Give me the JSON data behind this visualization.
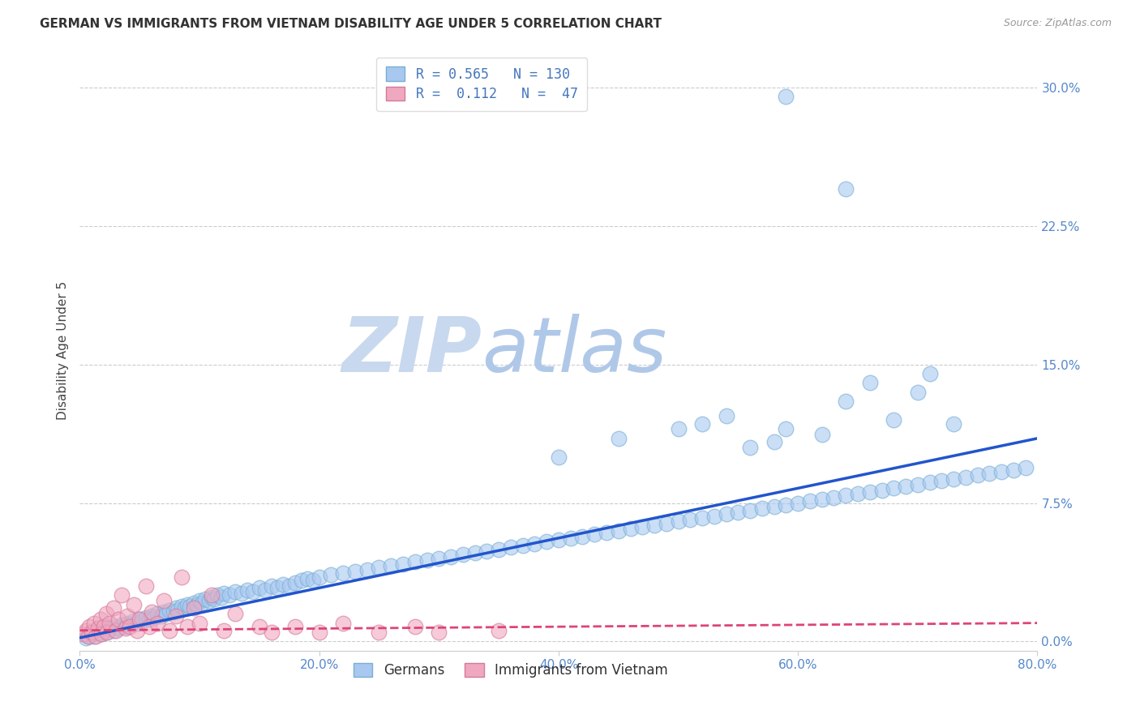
{
  "title": "GERMAN VS IMMIGRANTS FROM VIETNAM DISABILITY AGE UNDER 5 CORRELATION CHART",
  "source": "Source: ZipAtlas.com",
  "ylabel": "Disability Age Under 5",
  "background_color": "#ffffff",
  "watermark_zip": "ZIP",
  "watermark_atlas": "atlas",
  "xlim": [
    0.0,
    0.8
  ],
  "ylim": [
    -0.005,
    0.32
  ],
  "xticks": [
    0.0,
    0.2,
    0.4,
    0.6,
    0.8
  ],
  "yticks": [
    0.0,
    0.075,
    0.15,
    0.225,
    0.3
  ],
  "grid_color": "#cccccc",
  "german_color": "#a8c8f0",
  "german_edge_color": "#7aafd4",
  "vietnam_color": "#f0a8c0",
  "vietnam_edge_color": "#d47a9a",
  "trendline_german_color": "#2255cc",
  "trendline_vietnam_color": "#dd4477",
  "label_color": "#5588cc",
  "german_label": "Germans",
  "vietnam_label": "Immigrants from Vietnam",
  "legend_text_color": "#4477bb",
  "german_scatter": [
    [
      0.005,
      0.002
    ],
    [
      0.008,
      0.003
    ],
    [
      0.01,
      0.004
    ],
    [
      0.012,
      0.003
    ],
    [
      0.015,
      0.005
    ],
    [
      0.018,
      0.004
    ],
    [
      0.02,
      0.006
    ],
    [
      0.022,
      0.005
    ],
    [
      0.025,
      0.007
    ],
    [
      0.028,
      0.006
    ],
    [
      0.03,
      0.008
    ],
    [
      0.032,
      0.007
    ],
    [
      0.035,
      0.009
    ],
    [
      0.038,
      0.008
    ],
    [
      0.04,
      0.01
    ],
    [
      0.042,
      0.009
    ],
    [
      0.045,
      0.011
    ],
    [
      0.048,
      0.01
    ],
    [
      0.05,
      0.012
    ],
    [
      0.052,
      0.011
    ],
    [
      0.055,
      0.013
    ],
    [
      0.058,
      0.012
    ],
    [
      0.06,
      0.014
    ],
    [
      0.062,
      0.013
    ],
    [
      0.065,
      0.015
    ],
    [
      0.068,
      0.014
    ],
    [
      0.07,
      0.016
    ],
    [
      0.072,
      0.015
    ],
    [
      0.075,
      0.017
    ],
    [
      0.078,
      0.016
    ],
    [
      0.08,
      0.018
    ],
    [
      0.082,
      0.017
    ],
    [
      0.085,
      0.019
    ],
    [
      0.088,
      0.018
    ],
    [
      0.09,
      0.02
    ],
    [
      0.092,
      0.019
    ],
    [
      0.095,
      0.021
    ],
    [
      0.098,
      0.02
    ],
    [
      0.1,
      0.022
    ],
    [
      0.102,
      0.021
    ],
    [
      0.105,
      0.023
    ],
    [
      0.108,
      0.022
    ],
    [
      0.11,
      0.024
    ],
    [
      0.112,
      0.023
    ],
    [
      0.115,
      0.025
    ],
    [
      0.118,
      0.024
    ],
    [
      0.12,
      0.026
    ],
    [
      0.125,
      0.025
    ],
    [
      0.13,
      0.027
    ],
    [
      0.135,
      0.026
    ],
    [
      0.14,
      0.028
    ],
    [
      0.145,
      0.027
    ],
    [
      0.15,
      0.029
    ],
    [
      0.155,
      0.028
    ],
    [
      0.16,
      0.03
    ],
    [
      0.165,
      0.029
    ],
    [
      0.17,
      0.031
    ],
    [
      0.175,
      0.03
    ],
    [
      0.18,
      0.032
    ],
    [
      0.185,
      0.033
    ],
    [
      0.19,
      0.034
    ],
    [
      0.195,
      0.033
    ],
    [
      0.2,
      0.035
    ],
    [
      0.21,
      0.036
    ],
    [
      0.22,
      0.037
    ],
    [
      0.23,
      0.038
    ],
    [
      0.24,
      0.039
    ],
    [
      0.25,
      0.04
    ],
    [
      0.26,
      0.041
    ],
    [
      0.27,
      0.042
    ],
    [
      0.28,
      0.043
    ],
    [
      0.29,
      0.044
    ],
    [
      0.3,
      0.045
    ],
    [
      0.31,
      0.046
    ],
    [
      0.32,
      0.047
    ],
    [
      0.33,
      0.048
    ],
    [
      0.34,
      0.049
    ],
    [
      0.35,
      0.05
    ],
    [
      0.36,
      0.051
    ],
    [
      0.37,
      0.052
    ],
    [
      0.38,
      0.053
    ],
    [
      0.39,
      0.054
    ],
    [
      0.4,
      0.055
    ],
    [
      0.41,
      0.056
    ],
    [
      0.42,
      0.057
    ],
    [
      0.43,
      0.058
    ],
    [
      0.44,
      0.059
    ],
    [
      0.45,
      0.06
    ],
    [
      0.46,
      0.061
    ],
    [
      0.47,
      0.062
    ],
    [
      0.48,
      0.063
    ],
    [
      0.49,
      0.064
    ],
    [
      0.5,
      0.065
    ],
    [
      0.51,
      0.066
    ],
    [
      0.52,
      0.067
    ],
    [
      0.53,
      0.068
    ],
    [
      0.54,
      0.069
    ],
    [
      0.55,
      0.07
    ],
    [
      0.56,
      0.071
    ],
    [
      0.57,
      0.072
    ],
    [
      0.58,
      0.073
    ],
    [
      0.59,
      0.074
    ],
    [
      0.6,
      0.075
    ],
    [
      0.61,
      0.076
    ],
    [
      0.62,
      0.077
    ],
    [
      0.63,
      0.078
    ],
    [
      0.64,
      0.079
    ],
    [
      0.65,
      0.08
    ],
    [
      0.66,
      0.081
    ],
    [
      0.67,
      0.082
    ],
    [
      0.68,
      0.083
    ],
    [
      0.69,
      0.084
    ],
    [
      0.7,
      0.085
    ],
    [
      0.71,
      0.086
    ],
    [
      0.72,
      0.087
    ],
    [
      0.73,
      0.088
    ],
    [
      0.74,
      0.089
    ],
    [
      0.75,
      0.09
    ],
    [
      0.76,
      0.091
    ],
    [
      0.77,
      0.092
    ],
    [
      0.78,
      0.093
    ],
    [
      0.79,
      0.094
    ],
    [
      0.4,
      0.1
    ],
    [
      0.45,
      0.11
    ],
    [
      0.5,
      0.115
    ],
    [
      0.52,
      0.118
    ],
    [
      0.54,
      0.122
    ],
    [
      0.56,
      0.105
    ],
    [
      0.58,
      0.108
    ],
    [
      0.59,
      0.115
    ],
    [
      0.62,
      0.112
    ],
    [
      0.64,
      0.13
    ],
    [
      0.66,
      0.14
    ],
    [
      0.68,
      0.12
    ],
    [
      0.7,
      0.135
    ],
    [
      0.71,
      0.145
    ],
    [
      0.73,
      0.118
    ],
    [
      0.59,
      0.295
    ],
    [
      0.64,
      0.245
    ]
  ],
  "vietnam_scatter": [
    [
      0.003,
      0.004
    ],
    [
      0.005,
      0.006
    ],
    [
      0.007,
      0.003
    ],
    [
      0.008,
      0.008
    ],
    [
      0.01,
      0.005
    ],
    [
      0.012,
      0.01
    ],
    [
      0.013,
      0.003
    ],
    [
      0.015,
      0.007
    ],
    [
      0.017,
      0.012
    ],
    [
      0.018,
      0.004
    ],
    [
      0.02,
      0.008
    ],
    [
      0.022,
      0.015
    ],
    [
      0.023,
      0.005
    ],
    [
      0.025,
      0.01
    ],
    [
      0.028,
      0.018
    ],
    [
      0.03,
      0.006
    ],
    [
      0.032,
      0.012
    ],
    [
      0.035,
      0.025
    ],
    [
      0.038,
      0.007
    ],
    [
      0.04,
      0.014
    ],
    [
      0.042,
      0.008
    ],
    [
      0.045,
      0.02
    ],
    [
      0.048,
      0.006
    ],
    [
      0.05,
      0.012
    ],
    [
      0.055,
      0.03
    ],
    [
      0.058,
      0.008
    ],
    [
      0.06,
      0.016
    ],
    [
      0.065,
      0.01
    ],
    [
      0.07,
      0.022
    ],
    [
      0.075,
      0.006
    ],
    [
      0.08,
      0.014
    ],
    [
      0.085,
      0.035
    ],
    [
      0.09,
      0.008
    ],
    [
      0.095,
      0.018
    ],
    [
      0.1,
      0.01
    ],
    [
      0.11,
      0.025
    ],
    [
      0.12,
      0.006
    ],
    [
      0.13,
      0.015
    ],
    [
      0.15,
      0.008
    ],
    [
      0.16,
      0.005
    ],
    [
      0.18,
      0.008
    ],
    [
      0.2,
      0.005
    ],
    [
      0.22,
      0.01
    ],
    [
      0.25,
      0.005
    ],
    [
      0.28,
      0.008
    ],
    [
      0.3,
      0.005
    ],
    [
      0.35,
      0.006
    ]
  ],
  "german_trend_x": [
    0.0,
    0.8
  ],
  "german_trend_y": [
    0.002,
    0.11
  ],
  "vietnam_trend_x": [
    0.0,
    0.8
  ],
  "vietnam_trend_y": [
    0.006,
    0.01
  ]
}
